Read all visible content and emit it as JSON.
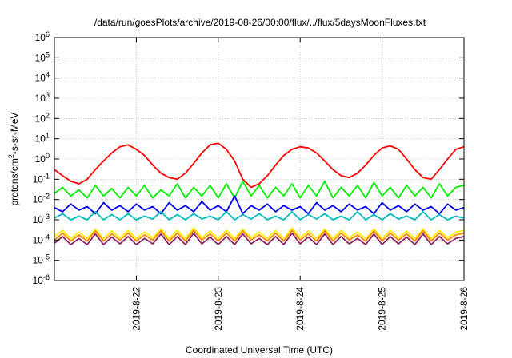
{
  "chart_data": {
    "type": "line",
    "title": "/data/run/goesPlots/archive/2019-08-26/00:00/flux/../flux/5daysMoonFluxes.txt",
    "xlabel": "Coordinated Universal Time (UTC)",
    "ylabel": "protons/cm²-s-sr-MeV",
    "ylabel_parts": {
      "pre": "protons/cm",
      "sup": "2",
      "post": "-s-sr-MeV"
    },
    "yscale": "log",
    "ylim": [
      1e-06,
      1000000.0
    ],
    "xlim": [
      0,
      5.0
    ],
    "x_unit": "days since 2019-08-21 00:00 UTC",
    "grid": true,
    "x_ticks": [
      {
        "x": 1,
        "label": "2019-8-22"
      },
      {
        "x": 2,
        "label": "2019-8-23"
      },
      {
        "x": 3,
        "label": "2019-8-24"
      },
      {
        "x": 4,
        "label": "2019-8-25"
      },
      {
        "x": 5,
        "label": "2019-8-26"
      }
    ],
    "y_ticks": [
      {
        "exp": -6,
        "base": "10",
        "sup": "-6"
      },
      {
        "exp": -5,
        "base": "10",
        "sup": "-5"
      },
      {
        "exp": -4,
        "base": "10",
        "sup": "-4"
      },
      {
        "exp": -3,
        "base": "10",
        "sup": "-3"
      },
      {
        "exp": -2,
        "base": "10",
        "sup": "-2"
      },
      {
        "exp": -1,
        "base": "10",
        "sup": "-1"
      },
      {
        "exp": 0,
        "base": "10",
        "sup": "0"
      },
      {
        "exp": 1,
        "base": "10",
        "sup": "1"
      },
      {
        "exp": 2,
        "base": "10",
        "sup": "2"
      },
      {
        "exp": 3,
        "base": "10",
        "sup": "3"
      },
      {
        "exp": 4,
        "base": "10",
        "sup": "4"
      },
      {
        "exp": 5,
        "base": "10",
        "sup": "5"
      },
      {
        "exp": 6,
        "base": "10",
        "sup": "6"
      }
    ],
    "series": [
      {
        "color": "#ff0000",
        "x": [
          0.0,
          0.1,
          0.2,
          0.3,
          0.4,
          0.5,
          0.6,
          0.7,
          0.8,
          0.9,
          1.0,
          1.1,
          1.2,
          1.3,
          1.4,
          1.5,
          1.6,
          1.7,
          1.8,
          1.9,
          2.0,
          2.1,
          2.2,
          2.3,
          2.4,
          2.5,
          2.6,
          2.7,
          2.8,
          2.9,
          3.0,
          3.1,
          3.2,
          3.3,
          3.4,
          3.5,
          3.6,
          3.7,
          3.8,
          3.9,
          4.0,
          4.1,
          4.2,
          4.3,
          4.4,
          4.5,
          4.6,
          4.7,
          4.8,
          4.9,
          5.0
        ],
        "y": [
          0.3,
          0.15,
          0.08,
          0.06,
          0.1,
          0.3,
          0.8,
          2.0,
          4.0,
          5.0,
          3.0,
          1.5,
          0.5,
          0.2,
          0.12,
          0.1,
          0.2,
          0.6,
          2.0,
          5.0,
          6.0,
          3.0,
          0.8,
          0.1,
          0.04,
          0.06,
          0.15,
          0.5,
          1.5,
          3.0,
          4.0,
          3.5,
          2.0,
          0.8,
          0.3,
          0.15,
          0.12,
          0.2,
          0.5,
          1.5,
          3.5,
          4.5,
          3.0,
          1.0,
          0.3,
          0.12,
          0.1,
          0.3,
          1.0,
          3.0,
          4.0
        ]
      },
      {
        "color": "#00ee00",
        "x": [
          0.0,
          0.1,
          0.2,
          0.3,
          0.4,
          0.5,
          0.6,
          0.7,
          0.8,
          0.9,
          1.0,
          1.1,
          1.2,
          1.3,
          1.4,
          1.5,
          1.6,
          1.7,
          1.8,
          1.9,
          2.0,
          2.1,
          2.2,
          2.3,
          2.4,
          2.5,
          2.6,
          2.7,
          2.8,
          2.9,
          3.0,
          3.1,
          3.2,
          3.3,
          3.4,
          3.5,
          3.6,
          3.7,
          3.8,
          3.9,
          4.0,
          4.1,
          4.2,
          4.3,
          4.4,
          4.5,
          4.6,
          4.7,
          4.8,
          4.9,
          5.0
        ],
        "y": [
          0.02,
          0.04,
          0.015,
          0.03,
          0.012,
          0.05,
          0.015,
          0.035,
          0.012,
          0.04,
          0.015,
          0.05,
          0.012,
          0.03,
          0.015,
          0.06,
          0.012,
          0.04,
          0.015,
          0.05,
          0.012,
          0.06,
          0.012,
          0.08,
          0.015,
          0.05,
          0.012,
          0.04,
          0.015,
          0.06,
          0.012,
          0.05,
          0.015,
          0.08,
          0.012,
          0.04,
          0.015,
          0.05,
          0.012,
          0.07,
          0.015,
          0.04,
          0.012,
          0.05,
          0.015,
          0.04,
          0.012,
          0.06,
          0.015,
          0.04,
          0.05
        ]
      },
      {
        "color": "#0000ee",
        "x": [
          0.0,
          0.1,
          0.2,
          0.3,
          0.4,
          0.5,
          0.6,
          0.7,
          0.8,
          0.9,
          1.0,
          1.1,
          1.2,
          1.3,
          1.4,
          1.5,
          1.6,
          1.7,
          1.8,
          1.9,
          2.0,
          2.1,
          2.2,
          2.3,
          2.4,
          2.5,
          2.6,
          2.7,
          2.8,
          2.9,
          3.0,
          3.1,
          3.2,
          3.3,
          3.4,
          3.5,
          3.6,
          3.7,
          3.8,
          3.9,
          4.0,
          4.1,
          4.2,
          4.3,
          4.4,
          4.5,
          4.6,
          4.7,
          4.8,
          4.9,
          5.0
        ],
        "y": [
          0.004,
          0.0025,
          0.006,
          0.003,
          0.0045,
          0.002,
          0.007,
          0.003,
          0.005,
          0.0025,
          0.006,
          0.003,
          0.0045,
          0.002,
          0.007,
          0.003,
          0.005,
          0.0025,
          0.008,
          0.003,
          0.005,
          0.0025,
          0.015,
          0.002,
          0.005,
          0.003,
          0.006,
          0.0025,
          0.005,
          0.003,
          0.0045,
          0.002,
          0.007,
          0.003,
          0.005,
          0.0025,
          0.006,
          0.003,
          0.0045,
          0.002,
          0.007,
          0.003,
          0.005,
          0.0025,
          0.006,
          0.003,
          0.0045,
          0.002,
          0.006,
          0.003,
          0.004
        ]
      },
      {
        "color": "#00bbbb",
        "x": [
          0.0,
          0.1,
          0.2,
          0.3,
          0.4,
          0.5,
          0.6,
          0.7,
          0.8,
          0.9,
          1.0,
          1.1,
          1.2,
          1.3,
          1.4,
          1.5,
          1.6,
          1.7,
          1.8,
          1.9,
          2.0,
          2.1,
          2.2,
          2.3,
          2.4,
          2.5,
          2.6,
          2.7,
          2.8,
          2.9,
          3.0,
          3.1,
          3.2,
          3.3,
          3.4,
          3.5,
          3.6,
          3.7,
          3.8,
          3.9,
          4.0,
          4.1,
          4.2,
          4.3,
          4.4,
          4.5,
          4.6,
          4.7,
          4.8,
          4.9,
          5.0
        ],
        "y": [
          0.0012,
          0.002,
          0.001,
          0.0015,
          0.001,
          0.0025,
          0.001,
          0.0018,
          0.001,
          0.002,
          0.001,
          0.0015,
          0.0011,
          0.0025,
          0.001,
          0.0018,
          0.001,
          0.002,
          0.0011,
          0.0015,
          0.001,
          0.0025,
          0.001,
          0.0018,
          0.0011,
          0.002,
          0.001,
          0.0015,
          0.001,
          0.0025,
          0.001,
          0.0018,
          0.0011,
          0.002,
          0.001,
          0.0015,
          0.001,
          0.0025,
          0.001,
          0.0018,
          0.001,
          0.002,
          0.0011,
          0.0015,
          0.001,
          0.0025,
          0.001,
          0.0018,
          0.001,
          0.0015,
          0.0012
        ]
      },
      {
        "color": "#ffee00",
        "x": [
          0.0,
          0.1,
          0.2,
          0.3,
          0.4,
          0.5,
          0.6,
          0.7,
          0.8,
          0.9,
          1.0,
          1.1,
          1.2,
          1.3,
          1.4,
          1.5,
          1.6,
          1.7,
          1.8,
          1.9,
          2.0,
          2.1,
          2.2,
          2.3,
          2.4,
          2.5,
          2.6,
          2.7,
          2.8,
          2.9,
          3.0,
          3.1,
          3.2,
          3.3,
          3.4,
          3.5,
          3.6,
          3.7,
          3.8,
          3.9,
          4.0,
          4.1,
          4.2,
          4.3,
          4.4,
          4.5,
          4.6,
          4.7,
          4.8,
          4.9,
          5.0
        ],
        "y": [
          0.00015,
          0.0003,
          0.00012,
          0.00025,
          0.00012,
          0.00035,
          0.00012,
          0.00028,
          0.00013,
          0.0003,
          0.00012,
          0.00025,
          0.00013,
          0.00035,
          0.00012,
          0.0003,
          0.00012,
          0.0004,
          0.00013,
          0.00028,
          0.00012,
          0.0003,
          0.00012,
          0.00035,
          0.00013,
          0.00025,
          0.00012,
          0.0003,
          0.00012,
          0.0004,
          0.00013,
          0.00028,
          0.00012,
          0.00035,
          0.00012,
          0.0003,
          0.00013,
          0.00025,
          0.00012,
          0.00035,
          0.00012,
          0.0003,
          0.00013,
          0.00028,
          0.00012,
          0.00035,
          0.00012,
          0.0003,
          0.00013,
          0.00025,
          0.0003
        ]
      },
      {
        "color": "#ff8800",
        "x": [
          0.0,
          0.1,
          0.2,
          0.3,
          0.4,
          0.5,
          0.6,
          0.7,
          0.8,
          0.9,
          1.0,
          1.1,
          1.2,
          1.3,
          1.4,
          1.5,
          1.6,
          1.7,
          1.8,
          1.9,
          2.0,
          2.1,
          2.2,
          2.3,
          2.4,
          2.5,
          2.6,
          2.7,
          2.8,
          2.9,
          3.0,
          3.1,
          3.2,
          3.3,
          3.4,
          3.5,
          3.6,
          3.7,
          3.8,
          3.9,
          4.0,
          4.1,
          4.2,
          4.3,
          4.4,
          4.5,
          4.6,
          4.7,
          4.8,
          4.9,
          5.0
        ],
        "y": [
          0.0001,
          0.00022,
          9e-05,
          0.00018,
          9e-05,
          0.00028,
          9e-05,
          0.0002,
          0.0001,
          0.00022,
          9e-05,
          0.00018,
          0.0001,
          0.00028,
          9e-05,
          0.00022,
          9e-05,
          0.0003,
          0.0001,
          0.0002,
          9e-05,
          0.00022,
          9e-05,
          0.00028,
          0.0001,
          0.00018,
          9e-05,
          0.00022,
          9e-05,
          0.0003,
          0.0001,
          0.0002,
          9e-05,
          0.00028,
          9e-05,
          0.00022,
          0.0001,
          0.00018,
          9e-05,
          0.00028,
          9e-05,
          0.00022,
          0.0001,
          0.0002,
          9e-05,
          0.00028,
          9e-05,
          0.00022,
          0.0001,
          0.00018,
          0.00022
        ]
      },
      {
        "color": "#882266",
        "x": [
          0.0,
          0.1,
          0.2,
          0.3,
          0.4,
          0.5,
          0.6,
          0.7,
          0.8,
          0.9,
          1.0,
          1.1,
          1.2,
          1.3,
          1.4,
          1.5,
          1.6,
          1.7,
          1.8,
          1.9,
          2.0,
          2.1,
          2.2,
          2.3,
          2.4,
          2.5,
          2.6,
          2.7,
          2.8,
          2.9,
          3.0,
          3.1,
          3.2,
          3.3,
          3.4,
          3.5,
          3.6,
          3.7,
          3.8,
          3.9,
          4.0,
          4.1,
          4.2,
          4.3,
          4.4,
          4.5,
          4.6,
          4.7,
          4.8,
          4.9,
          5.0
        ],
        "y": [
          7e-05,
          0.00015,
          6e-05,
          0.00012,
          6e-05,
          0.0002,
          6e-05,
          0.00014,
          6.5e-05,
          0.00015,
          6e-05,
          0.00012,
          6.5e-05,
          0.0002,
          6e-05,
          0.00015,
          6e-05,
          0.00022,
          6.5e-05,
          0.00014,
          6e-05,
          0.00015,
          6e-05,
          0.0002,
          6.5e-05,
          0.00012,
          6e-05,
          0.00015,
          6e-05,
          0.00022,
          6.5e-05,
          0.00014,
          6e-05,
          0.0002,
          6e-05,
          0.00015,
          6.5e-05,
          0.00012,
          6e-05,
          0.0002,
          6e-05,
          0.00015,
          6.5e-05,
          0.00014,
          6e-05,
          0.0002,
          6e-05,
          0.00015,
          6.5e-05,
          0.00012,
          0.00015
        ]
      }
    ]
  }
}
